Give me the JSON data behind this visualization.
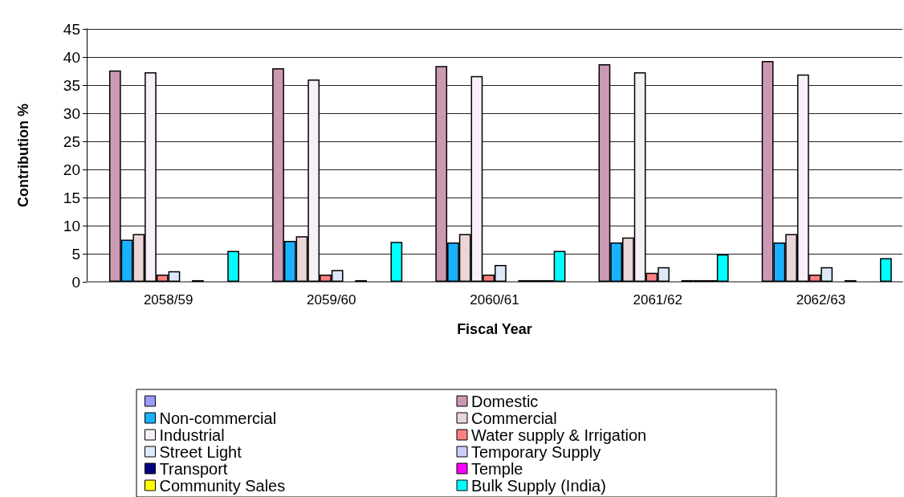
{
  "chart_data": {
    "type": "bar",
    "xlabel": "Fiscal Year",
    "ylabel": "Contribution %",
    "categories": [
      "2058/59",
      "2059/60",
      "2060/61",
      "2061/62",
      "2062/63"
    ],
    "series": [
      {
        "color": "#9999ff",
        "values": [
          0,
          0,
          0,
          0,
          0
        ]
      },
      {
        "name": "Domestic",
        "color": "#cc99b3",
        "values": [
          37.6,
          38.0,
          38.4,
          38.7,
          39.3
        ]
      },
      {
        "name": "Non-commercial",
        "color": "#1ab2ff",
        "values": [
          7.5,
          7.3,
          7.0,
          7.0,
          7.0
        ]
      },
      {
        "name": "Commercial",
        "color": "#ead6d6",
        "values": [
          8.5,
          8.1,
          8.5,
          7.9,
          8.5
        ]
      },
      {
        "name": "Industrial",
        "color": "#f8f0f8",
        "values": [
          37.3,
          36.0,
          36.6,
          37.3,
          36.9
        ]
      },
      {
        "name": "Water supply & Irrigation",
        "color": "#ff8080",
        "values": [
          1.3,
          1.3,
          1.3,
          1.6,
          1.3
        ]
      },
      {
        "name": "Street Light",
        "color": "#dde9f8",
        "values": [
          1.9,
          2.1,
          3.0,
          2.6,
          2.6
        ]
      },
      {
        "name": "Temporary Supply",
        "color": "#ccccff",
        "values": [
          0,
          0,
          0,
          0,
          0
        ]
      },
      {
        "name": "Transport",
        "color": "#000080",
        "values": [
          0.3,
          0.3,
          0.3,
          0.3,
          0.3
        ]
      },
      {
        "name": "Temple",
        "color": "#ff00ff",
        "values": [
          0,
          0,
          0.3,
          0.3,
          0
        ]
      },
      {
        "name": "Community Sales",
        "color": "#ffff00",
        "values": [
          0,
          0,
          0.3,
          0.3,
          0
        ]
      },
      {
        "name": "Bulk Supply (India)",
        "color": "#00ffff",
        "values": [
          5.5,
          7.1,
          5.5,
          4.9,
          4.2
        ]
      }
    ],
    "ylim": [
      0,
      45
    ],
    "yticks": [
      0,
      5,
      10,
      15,
      20,
      25,
      30,
      35,
      40,
      45
    ],
    "grid": "y",
    "legend": "bottom"
  }
}
